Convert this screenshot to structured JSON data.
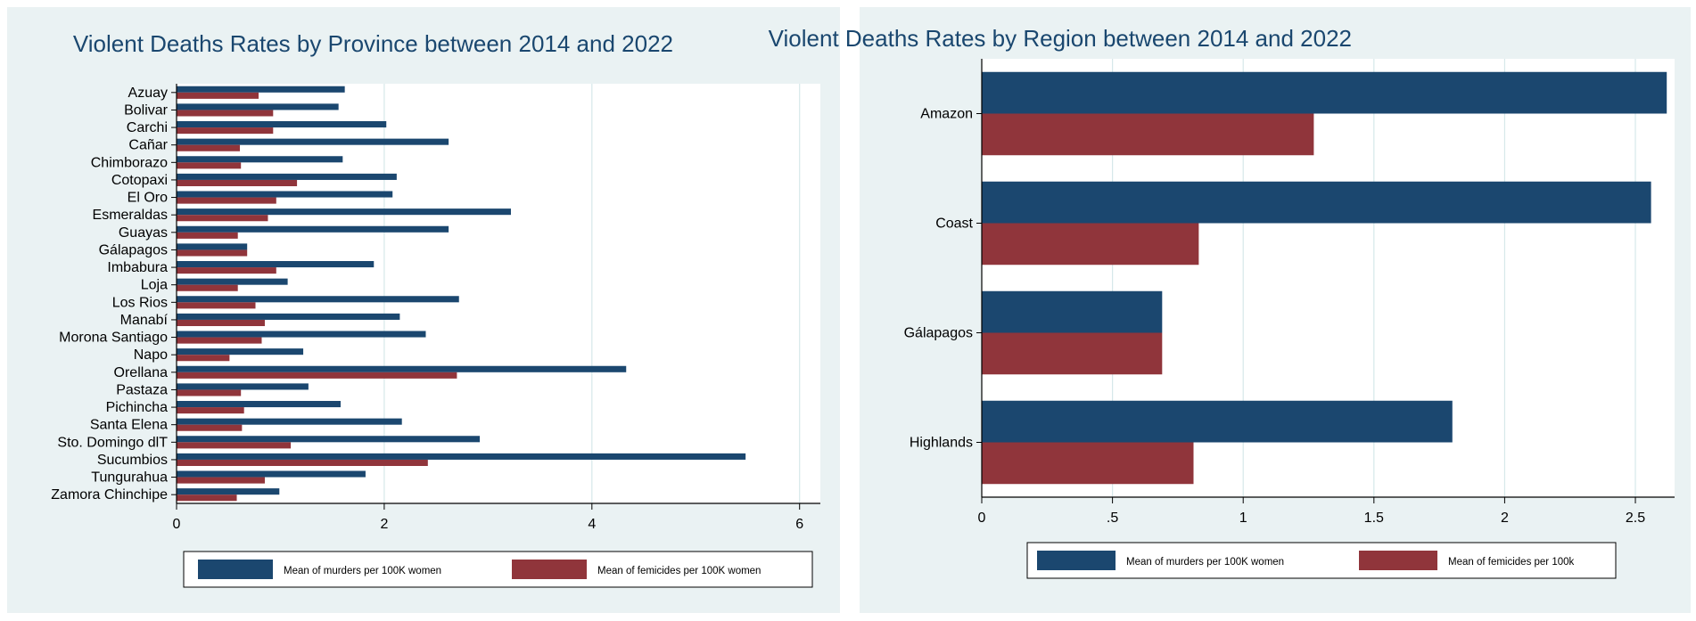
{
  "colors": {
    "murders": "#1b476f",
    "femicides": "#90353b",
    "title": "#1a476f",
    "panel_bg": "#eaf2f3",
    "grid": "#d6e8ea"
  },
  "chart_data": [
    {
      "type": "bar",
      "orientation": "horizontal",
      "title": "Violent Deaths Rates by Province between 2014 and 2022",
      "categories": [
        "Azuay",
        "Bolivar",
        "Carchi",
        "Cañar",
        "Chimborazo",
        "Cotopaxi",
        "El Oro",
        "Esmeraldas",
        "Guayas",
        "Gálapagos",
        "Imbabura",
        "Loja",
        "Los Rios",
        "Manabí",
        "Morona Santiago",
        "Napo",
        "Orellana",
        "Pastaza",
        "Pichincha",
        "Santa Elena",
        "Sto. Domingo dlT",
        "Sucumbios",
        "Tungurahua",
        "Zamora Chinchipe"
      ],
      "series": [
        {
          "name": "Mean of murders per 100K women",
          "values": [
            1.62,
            1.56,
            2.02,
            2.62,
            1.6,
            2.12,
            2.08,
            3.22,
            2.62,
            0.68,
            1.9,
            1.07,
            2.72,
            2.15,
            2.4,
            1.22,
            4.33,
            1.27,
            1.58,
            2.17,
            2.92,
            5.48,
            1.82,
            0.99
          ]
        },
        {
          "name": "Mean of femicides per 100K women",
          "values": [
            0.79,
            0.93,
            0.93,
            0.61,
            0.62,
            1.16,
            0.96,
            0.88,
            0.59,
            0.68,
            0.96,
            0.59,
            0.76,
            0.85,
            0.82,
            0.51,
            2.7,
            0.62,
            0.65,
            0.63,
            1.1,
            2.42,
            0.85,
            0.58
          ]
        }
      ],
      "xlim": [
        0,
        6.2
      ],
      "xticks": [
        "0",
        "2",
        "4",
        "6"
      ],
      "xtick_values": [
        0,
        2,
        4,
        6
      ],
      "legend": [
        "Mean of murders per 100K women",
        "Mean of femicides per 100K women"
      ],
      "legend_position": "bottom"
    },
    {
      "type": "bar",
      "orientation": "horizontal",
      "title": "Violent Deaths Rates by Region between 2014 and 2022",
      "categories": [
        "Amazon",
        "Coast",
        "Gálapagos",
        "Highlands"
      ],
      "series": [
        {
          "name": "Mean of murders per 100K women",
          "values": [
            2.62,
            2.56,
            0.69,
            1.8
          ]
        },
        {
          "name": "Mean of femicides per 100k",
          "values": [
            1.27,
            0.83,
            0.69,
            0.81
          ]
        }
      ],
      "xlim": [
        0,
        2.65
      ],
      "xticks": [
        "0",
        ".5",
        "1",
        "1.5",
        "2",
        "2.5"
      ],
      "xtick_values": [
        0,
        0.5,
        1,
        1.5,
        2,
        2.5
      ],
      "legend": [
        "Mean of murders per 100K women",
        "Mean of femicides per 100k"
      ],
      "legend_position": "bottom"
    }
  ]
}
